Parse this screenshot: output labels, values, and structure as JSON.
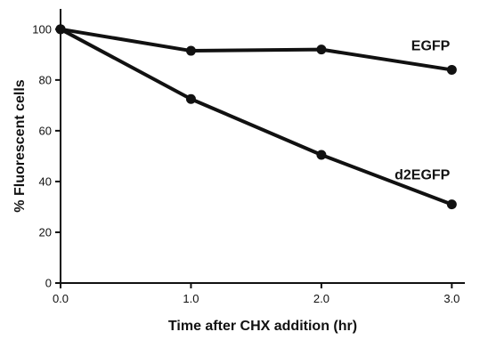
{
  "chart_data": {
    "type": "line",
    "title": "",
    "xlabel": "Time after CHX addition (hr)",
    "ylabel": "% Fluorescent cells",
    "xlim": [
      0,
      3.1
    ],
    "ylim": [
      0,
      108
    ],
    "grid": false,
    "x_ticks": [
      {
        "value": 0,
        "label": "0.0"
      },
      {
        "value": 1,
        "label": "1.0"
      },
      {
        "value": 2,
        "label": "2.0"
      },
      {
        "value": 3,
        "label": "3.0"
      }
    ],
    "y_ticks": [
      {
        "value": 0,
        "label": "0"
      },
      {
        "value": 20,
        "label": "20"
      },
      {
        "value": 40,
        "label": "40"
      },
      {
        "value": 60,
        "label": "60"
      },
      {
        "value": 80,
        "label": "80"
      },
      {
        "value": 100,
        "label": "100"
      }
    ],
    "series": [
      {
        "name": "EGFP",
        "color": "#111111",
        "points": [
          [
            0,
            100
          ],
          [
            1,
            91.5
          ],
          [
            2,
            92
          ],
          [
            3,
            84
          ]
        ]
      },
      {
        "name": "d2EGFP",
        "color": "#111111",
        "points": [
          [
            0,
            100
          ],
          [
            1,
            72.5
          ],
          [
            2,
            50.5
          ],
          [
            3,
            31
          ]
        ]
      }
    ]
  }
}
